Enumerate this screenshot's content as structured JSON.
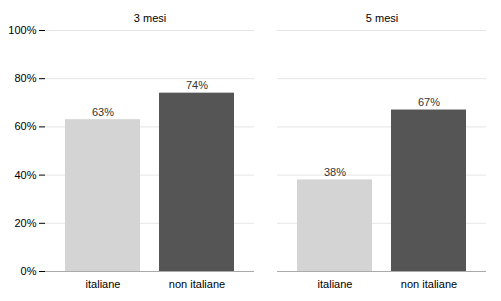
{
  "chart_data": {
    "type": "bar",
    "categories": [
      "italiane",
      "non italiane",
      "italiane",
      "non italiane"
    ],
    "groups": [
      "3 mesi",
      "3 mesi",
      "5 mesi",
      "5 mesi"
    ],
    "values": [
      63,
      74,
      38,
      67
    ],
    "value_labels": [
      "63%",
      "74%",
      "38%",
      "67%"
    ],
    "data_labels": true,
    "colors": [
      "#d4d4d4",
      "#555555",
      "#d4d4d4",
      "#555555"
    ],
    "ylim": [
      0,
      100
    ],
    "yticks": [
      {
        "value": 0,
        "label": "0%"
      },
      {
        "value": 20,
        "label": "20%"
      },
      {
        "value": 40,
        "label": "40%"
      },
      {
        "value": 60,
        "label": "60%"
      },
      {
        "value": 80,
        "label": "80%"
      },
      {
        "value": 100,
        "label": "100%"
      }
    ],
    "grid": true
  }
}
